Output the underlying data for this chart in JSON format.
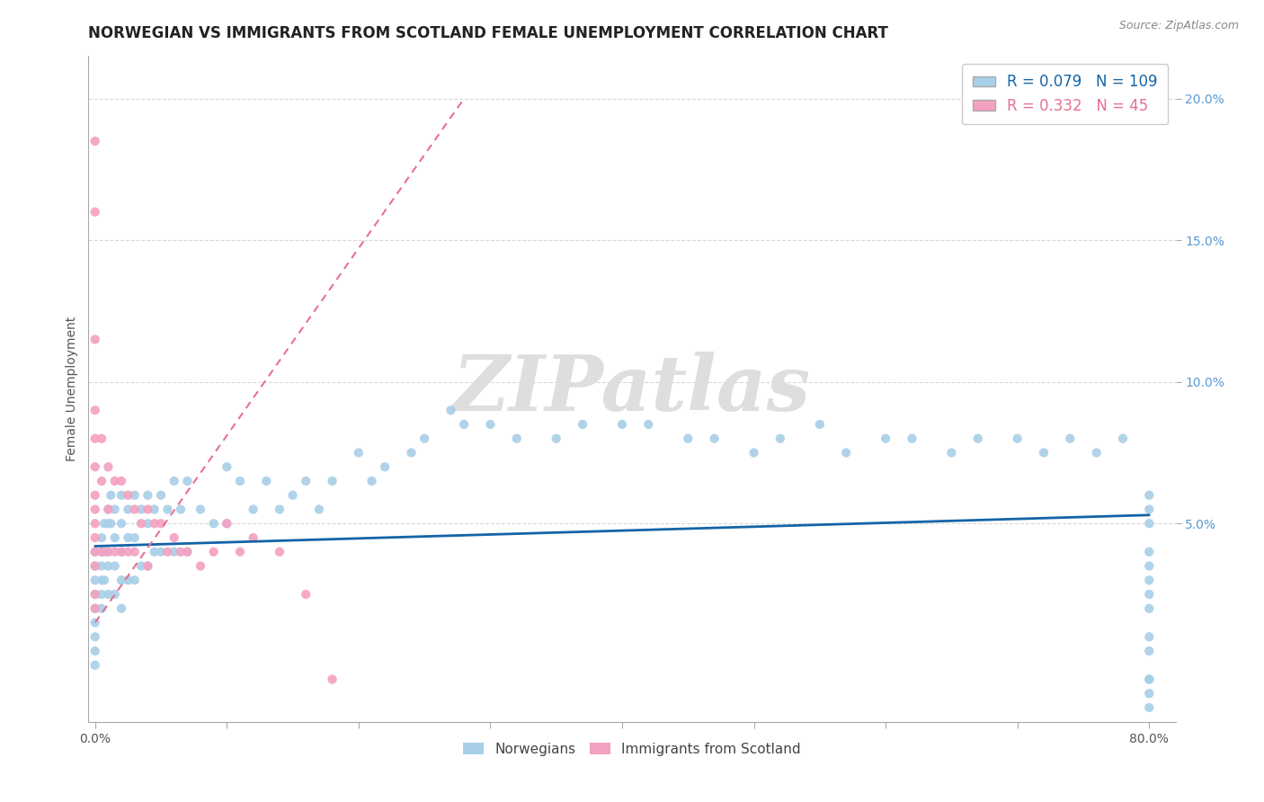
{
  "title": "NORWEGIAN VS IMMIGRANTS FROM SCOTLAND FEMALE UNEMPLOYMENT CORRELATION CHART",
  "source": "Source: ZipAtlas.com",
  "ylabel": "Female Unemployment",
  "xlim": [
    -0.005,
    0.82
  ],
  "ylim": [
    -0.02,
    0.215
  ],
  "xtick_positions": [
    0.0,
    0.1,
    0.2,
    0.3,
    0.4,
    0.5,
    0.6,
    0.7,
    0.8
  ],
  "xticklabels_sparse": [
    "0.0%",
    "",
    "",
    "",
    "",
    "",
    "",
    "",
    "80.0%"
  ],
  "yticks_right": [
    0.05,
    0.1,
    0.15,
    0.2
  ],
  "ytick_right_labels": [
    "5.0%",
    "10.0%",
    "15.0%",
    "20.0%"
  ],
  "norwegian_R": 0.079,
  "norwegian_N": 109,
  "scotland_R": 0.332,
  "scotland_N": 45,
  "norwegian_color": "#a8cfe8",
  "scotland_color": "#f4a0c0",
  "trendline_norwegian_color": "#1464a8",
  "trendline_scotland_color": "#e87090",
  "background_color": "#ffffff",
  "grid_color": "#d8d8d8",
  "watermark_text": "ZIPatlas",
  "watermark_color": "#dedede",
  "nor_x": [
    0.0,
    0.0,
    0.0,
    0.0,
    0.0,
    0.0,
    0.0,
    0.0,
    0.0,
    0.005,
    0.005,
    0.005,
    0.005,
    0.005,
    0.005,
    0.007,
    0.007,
    0.007,
    0.01,
    0.01,
    0.01,
    0.01,
    0.01,
    0.012,
    0.012,
    0.015,
    0.015,
    0.015,
    0.015,
    0.02,
    0.02,
    0.02,
    0.02,
    0.02,
    0.025,
    0.025,
    0.025,
    0.03,
    0.03,
    0.03,
    0.035,
    0.035,
    0.04,
    0.04,
    0.04,
    0.045,
    0.045,
    0.05,
    0.05,
    0.055,
    0.06,
    0.06,
    0.065,
    0.07,
    0.07,
    0.08,
    0.09,
    0.1,
    0.1,
    0.11,
    0.12,
    0.13,
    0.14,
    0.15,
    0.16,
    0.17,
    0.18,
    0.2,
    0.21,
    0.22,
    0.24,
    0.25,
    0.27,
    0.28,
    0.3,
    0.32,
    0.35,
    0.37,
    0.4,
    0.42,
    0.45,
    0.47,
    0.5,
    0.52,
    0.55,
    0.57,
    0.6,
    0.62,
    0.65,
    0.67,
    0.7,
    0.72,
    0.74,
    0.76,
    0.78,
    0.8,
    0.8,
    0.8,
    0.8,
    0.8,
    0.8,
    0.8,
    0.8,
    0.8,
    0.8,
    0.8,
    0.8,
    0.8,
    0.8
  ],
  "nor_y": [
    0.04,
    0.035,
    0.03,
    0.025,
    0.02,
    0.015,
    0.01,
    0.005,
    0.0,
    0.045,
    0.04,
    0.035,
    0.03,
    0.025,
    0.02,
    0.05,
    0.04,
    0.03,
    0.055,
    0.05,
    0.04,
    0.035,
    0.025,
    0.06,
    0.05,
    0.055,
    0.045,
    0.035,
    0.025,
    0.06,
    0.05,
    0.04,
    0.03,
    0.02,
    0.055,
    0.045,
    0.03,
    0.06,
    0.045,
    0.03,
    0.055,
    0.035,
    0.06,
    0.05,
    0.035,
    0.055,
    0.04,
    0.06,
    0.04,
    0.055,
    0.065,
    0.04,
    0.055,
    0.065,
    0.04,
    0.055,
    0.05,
    0.07,
    0.05,
    0.065,
    0.055,
    0.065,
    0.055,
    0.06,
    0.065,
    0.055,
    0.065,
    0.075,
    0.065,
    0.07,
    0.075,
    0.08,
    0.09,
    0.085,
    0.085,
    0.08,
    0.08,
    0.085,
    0.085,
    0.085,
    0.08,
    0.08,
    0.075,
    0.08,
    0.085,
    0.075,
    0.08,
    0.08,
    0.075,
    0.08,
    0.08,
    0.075,
    0.08,
    0.075,
    0.08,
    0.06,
    0.055,
    0.05,
    0.04,
    0.035,
    0.03,
    0.025,
    0.02,
    0.01,
    0.005,
    -0.005,
    -0.01,
    -0.015,
    -0.005
  ],
  "sco_x": [
    0.0,
    0.0,
    0.0,
    0.0,
    0.0,
    0.0,
    0.0,
    0.0,
    0.0,
    0.0,
    0.0,
    0.0,
    0.0,
    0.0,
    0.005,
    0.005,
    0.005,
    0.01,
    0.01,
    0.01,
    0.015,
    0.015,
    0.02,
    0.02,
    0.025,
    0.025,
    0.03,
    0.03,
    0.035,
    0.04,
    0.04,
    0.045,
    0.05,
    0.055,
    0.06,
    0.065,
    0.07,
    0.08,
    0.09,
    0.1,
    0.11,
    0.12,
    0.14,
    0.16,
    0.18
  ],
  "sco_y": [
    0.185,
    0.16,
    0.115,
    0.09,
    0.08,
    0.07,
    0.06,
    0.055,
    0.05,
    0.045,
    0.04,
    0.035,
    0.025,
    0.02,
    0.08,
    0.065,
    0.04,
    0.07,
    0.055,
    0.04,
    0.065,
    0.04,
    0.065,
    0.04,
    0.06,
    0.04,
    0.055,
    0.04,
    0.05,
    0.055,
    0.035,
    0.05,
    0.05,
    0.04,
    0.045,
    0.04,
    0.04,
    0.035,
    0.04,
    0.05,
    0.04,
    0.045,
    0.04,
    0.025,
    -0.005
  ],
  "nor_trend_x0": 0.0,
  "nor_trend_x1": 0.8,
  "nor_trend_y0": 0.042,
  "nor_trend_y1": 0.053,
  "sco_trend_x0": 0.0,
  "sco_trend_x1": 0.28,
  "sco_trend_y0": 0.015,
  "sco_trend_y1": 0.2,
  "title_fontsize": 12,
  "axis_label_fontsize": 10,
  "tick_fontsize": 10,
  "legend_fontsize": 12
}
